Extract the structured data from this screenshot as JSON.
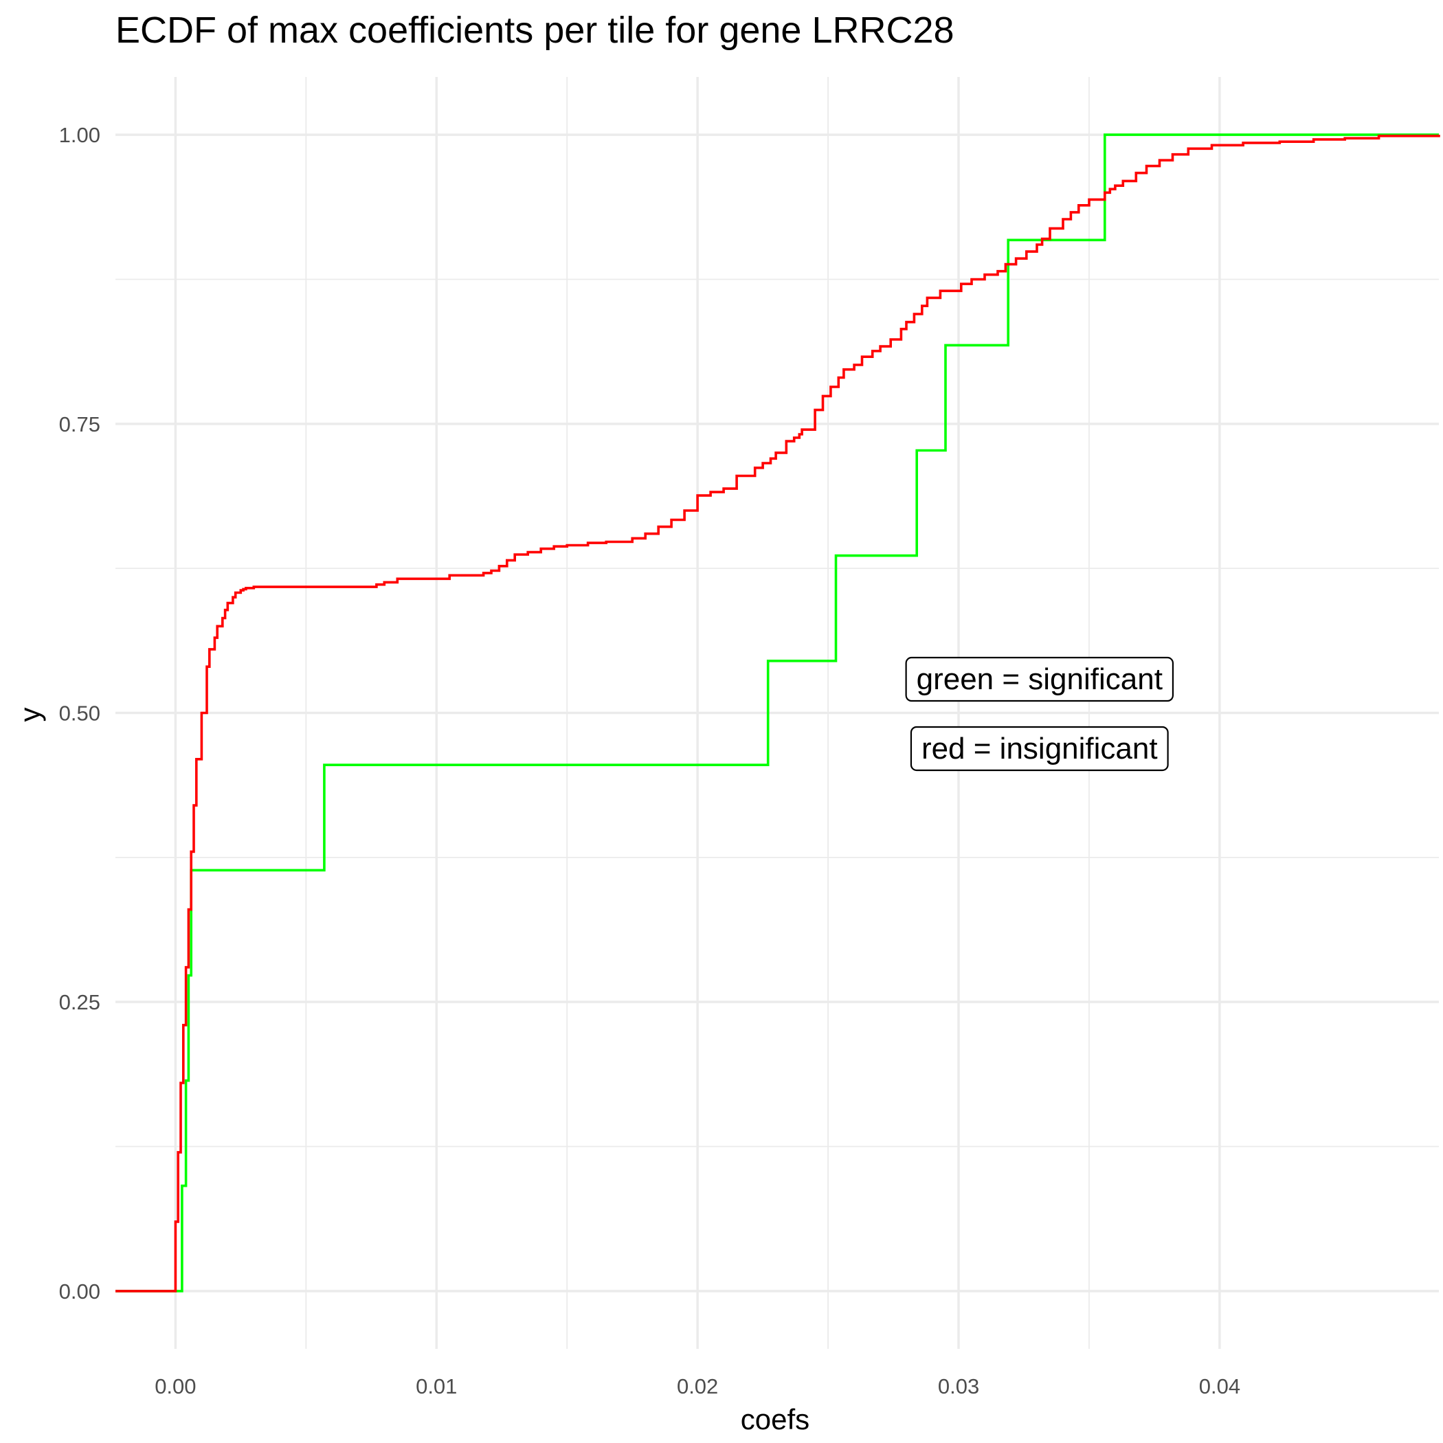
{
  "chart_data": {
    "type": "line",
    "step": true,
    "title": "ECDF of max coefficients per tile for gene LRRC28",
    "xlabel": "coefs",
    "ylabel": "y",
    "xlim": [
      -0.0023,
      0.0484
    ],
    "ylim": [
      -0.05,
      1.05
    ],
    "x_ticks": [
      0.0,
      0.01,
      0.02,
      0.03,
      0.04
    ],
    "x_tick_labels": [
      "0.00",
      "0.01",
      "0.02",
      "0.03",
      "0.04"
    ],
    "y_ticks": [
      0.0,
      0.25,
      0.5,
      0.75,
      1.0
    ],
    "y_tick_labels": [
      "0.00",
      "0.25",
      "0.50",
      "0.75",
      "1.00"
    ],
    "grid": true,
    "legend": "none",
    "annotations": [
      {
        "text": "green = significant",
        "x": 0.0331,
        "y": 0.53
      },
      {
        "text": "red = insignificant",
        "x": 0.0331,
        "y": 0.47
      }
    ],
    "series": [
      {
        "color": "#00ff00",
        "x": [
          -0.0023,
          0.00025,
          0.0004,
          0.0005,
          0.0006,
          0.0057,
          0.0227,
          0.0253,
          0.0284,
          0.0295,
          0.0319,
          0.0356,
          0.0484
        ],
        "y": [
          0.0,
          0.091,
          0.182,
          0.273,
          0.364,
          0.455,
          0.545,
          0.636,
          0.727,
          0.818,
          0.909,
          1.0,
          1.0
        ]
      },
      {
        "color": "#ff0000",
        "x": [
          -0.0023,
          0.0,
          0.0001,
          0.0002,
          0.0003,
          0.0004,
          0.0005,
          0.0006,
          0.0007,
          0.0008,
          0.001,
          0.0012,
          0.0013,
          0.0015,
          0.0016,
          0.0018,
          0.0019,
          0.002,
          0.0022,
          0.0023,
          0.0025,
          0.0026,
          0.0027,
          0.003,
          0.0035,
          0.0077,
          0.008,
          0.0085,
          0.0095,
          0.0105,
          0.0118,
          0.0121,
          0.0124,
          0.0127,
          0.013,
          0.0135,
          0.014,
          0.0145,
          0.015,
          0.0158,
          0.0165,
          0.0175,
          0.018,
          0.0185,
          0.019,
          0.0195,
          0.02,
          0.0205,
          0.021,
          0.0215,
          0.0222,
          0.0225,
          0.0228,
          0.023,
          0.0234,
          0.0237,
          0.0239,
          0.024,
          0.0245,
          0.0248,
          0.0251,
          0.0254,
          0.0256,
          0.026,
          0.0263,
          0.0267,
          0.027,
          0.0274,
          0.0278,
          0.028,
          0.0283,
          0.0286,
          0.0288,
          0.0293,
          0.0301,
          0.0305,
          0.031,
          0.0315,
          0.0318,
          0.0322,
          0.0326,
          0.033,
          0.0332,
          0.0335,
          0.034,
          0.0343,
          0.0346,
          0.035,
          0.0356,
          0.0358,
          0.036,
          0.0363,
          0.0368,
          0.0372,
          0.0377,
          0.0382,
          0.0388,
          0.0397,
          0.0409,
          0.0423,
          0.0436,
          0.0448,
          0.0461,
          0.0484
        ],
        "y": [
          0.0,
          0.06,
          0.12,
          0.18,
          0.23,
          0.28,
          0.33,
          0.38,
          0.42,
          0.46,
          0.5,
          0.54,
          0.555,
          0.565,
          0.575,
          0.582,
          0.589,
          0.595,
          0.6,
          0.604,
          0.606,
          0.607,
          0.608,
          0.609,
          0.609,
          0.611,
          0.613,
          0.616,
          0.616,
          0.619,
          0.621,
          0.623,
          0.627,
          0.632,
          0.637,
          0.639,
          0.642,
          0.644,
          0.645,
          0.647,
          0.648,
          0.651,
          0.655,
          0.661,
          0.667,
          0.675,
          0.688,
          0.691,
          0.694,
          0.705,
          0.712,
          0.716,
          0.72,
          0.725,
          0.735,
          0.738,
          0.741,
          0.745,
          0.762,
          0.774,
          0.782,
          0.79,
          0.797,
          0.801,
          0.808,
          0.813,
          0.817,
          0.823,
          0.832,
          0.838,
          0.845,
          0.852,
          0.859,
          0.865,
          0.871,
          0.875,
          0.879,
          0.882,
          0.888,
          0.893,
          0.899,
          0.905,
          0.91,
          0.919,
          0.927,
          0.933,
          0.939,
          0.944,
          0.95,
          0.953,
          0.956,
          0.96,
          0.967,
          0.973,
          0.978,
          0.983,
          0.988,
          0.991,
          0.993,
          0.994,
          0.996,
          0.997,
          0.999,
          1.0
        ]
      }
    ]
  }
}
